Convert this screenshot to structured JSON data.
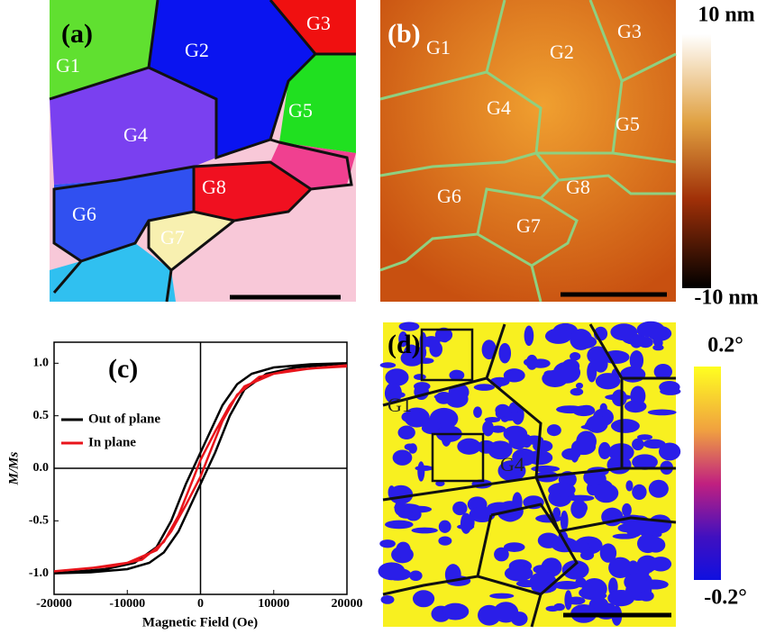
{
  "panels": {
    "a": {
      "label": "(a)",
      "grains": [
        "G1",
        "G2",
        "G3",
        "G4",
        "G5",
        "G6",
        "G7",
        "G8"
      ]
    },
    "b": {
      "label": "(b)",
      "grains": [
        "G1",
        "G2",
        "G3",
        "G4",
        "G5",
        "G6",
        "G7",
        "G8"
      ],
      "colorbar": [
        "10 nm",
        "-10 nm"
      ]
    },
    "d": {
      "label": "(d)",
      "grains": [
        "G1",
        "G4"
      ],
      "colorbar": [
        "0.2°",
        "-0.2°"
      ]
    }
  },
  "chart_data": {
    "type": "line",
    "panel_label": "(c)",
    "x_label": "Magnetic Field (Oe)",
    "y_label": "M/Ms",
    "xlim": [
      -20000,
      20000
    ],
    "xticks": [
      -20000,
      -10000,
      0,
      10000,
      20000
    ],
    "ylim": [
      -1.2,
      1.2
    ],
    "yticks": [
      {
        "value": -1.0,
        "label": "-1.0"
      },
      {
        "value": -0.5,
        "label": "-0.5"
      },
      {
        "value": 0.0,
        "label": "0.0"
      },
      {
        "value": 0.5,
        "label": "0.5"
      },
      {
        "value": 1.0,
        "label": "1.0"
      }
    ],
    "zero_lines": true,
    "series": [
      {
        "name": "Out of plane",
        "color": "#000000",
        "x": [
          20000,
          15000,
          10000,
          7000,
          5000,
          3000,
          1000,
          0,
          -2000,
          -4000,
          -6000,
          -9000,
          -13000,
          -20000,
          -15000,
          -10000,
          -7000,
          -5000,
          -3000,
          -1000,
          0,
          2000,
          4000,
          6000,
          9000,
          13000,
          20000
        ],
        "values": [
          1.0,
          0.99,
          0.96,
          0.9,
          0.8,
          0.6,
          0.3,
          0.15,
          -0.15,
          -0.5,
          -0.75,
          -0.9,
          -0.96,
          -1.0,
          -0.99,
          -0.96,
          -0.9,
          -0.8,
          -0.6,
          -0.3,
          -0.15,
          0.15,
          0.5,
          0.75,
          0.9,
          0.96,
          1.0
        ]
      },
      {
        "name": "In plane",
        "color": "#e8141b",
        "x": [
          20000,
          15000,
          10000,
          6000,
          4000,
          2000,
          0,
          -1000,
          -3000,
          -5000,
          -8000,
          -12000,
          -20000,
          -15000,
          -10000,
          -6000,
          -4000,
          -2000,
          0,
          1000,
          3000,
          5000,
          8000,
          12000,
          20000
        ],
        "values": [
          0.97,
          0.95,
          0.9,
          0.78,
          0.6,
          0.35,
          0.08,
          -0.1,
          -0.45,
          -0.7,
          -0.87,
          -0.93,
          -0.98,
          -0.95,
          -0.9,
          -0.78,
          -0.6,
          -0.35,
          -0.08,
          0.1,
          0.45,
          0.7,
          0.87,
          0.93,
          0.98
        ]
      }
    ]
  }
}
